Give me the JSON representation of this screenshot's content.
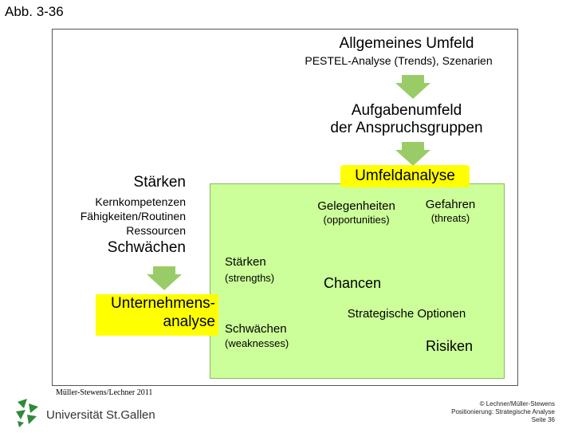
{
  "slide_label": "Abb. 3-36",
  "environment": {
    "title": "Allgemeines Umfeld",
    "subtitle": "PESTEL-Analyse (Trends), Szenarien"
  },
  "task_environment": {
    "line1": "Aufgabenumfeld",
    "line2": "der Anspruchsgruppen"
  },
  "umfeldanalyse": "Umfeldanalyse",
  "left": {
    "strengths": "Stärken",
    "items": [
      "Kernkompetenzen",
      "Fähigkeiten/Routinen",
      "Ressourcen"
    ],
    "weaknesses": "Schwächen"
  },
  "unternehmensanalyse": {
    "line1": "Unternehmens-",
    "line2": "analyse"
  },
  "matrix": {
    "opportunities": "Gelegenheiten",
    "opportunities_en": "(opportunities)",
    "threats": "Gefahren",
    "threats_en": "(threats)",
    "strengths": "Stärken",
    "strengths_en": "(strengths)",
    "weaknesses": "Schwächen",
    "weaknesses_en": "(weaknesses)",
    "chancen": "Chancen",
    "options": "Strategische Optionen",
    "risiken": "Risiken"
  },
  "footnote": "Müller-Stewens/Lechner 2011",
  "logo_text": "Universität St.Gallen",
  "copyright": {
    "line1": "© Lechner/Müller-Stewens",
    "line2": "Positionierung: Strategische Analyse",
    "line3": "Seite 36"
  },
  "colors": {
    "green_fill": "#ccff99",
    "highlight": "#ffff00",
    "arrow_green": "#99cc66",
    "logo_green": "#2e8b3a"
  }
}
